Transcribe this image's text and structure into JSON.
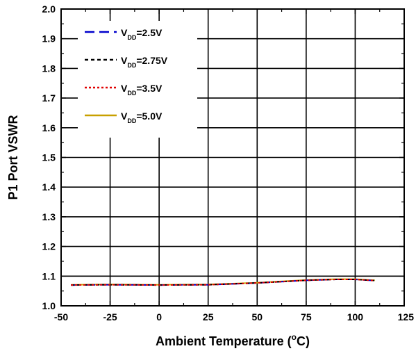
{
  "chart_data": {
    "type": "line",
    "title": "",
    "xlabel": "Ambient Temperature",
    "xlabel_unit_open": " (",
    "xlabel_unit_sup": "o",
    "xlabel_unit_close": "C)",
    "ylabel": "P1 Port VSWR",
    "xlim": [
      -50,
      125
    ],
    "ylim": [
      1.0,
      2.0
    ],
    "xticks": [
      -50,
      -25,
      0,
      25,
      50,
      75,
      100,
      125
    ],
    "xtick_labels": [
      "-50",
      "-25",
      "0",
      "25",
      "50",
      "75",
      "100",
      "125"
    ],
    "yticks": [
      1.0,
      1.1,
      1.2,
      1.3,
      1.4,
      1.5,
      1.6,
      1.7,
      1.8,
      1.9,
      2.0
    ],
    "ytick_labels": [
      "1.0",
      "1.1",
      "1.2",
      "1.3",
      "1.4",
      "1.5",
      "1.6",
      "1.7",
      "1.8",
      "1.9",
      "2.0"
    ],
    "grid": true,
    "legend_position": "top-left",
    "x": [
      -45,
      -25,
      0,
      25,
      50,
      75,
      90,
      100,
      110
    ],
    "series": [
      {
        "name_main": "V",
        "name_sub": "DD",
        "name_rest": "=2.5V",
        "color": "#0000cc",
        "dash": "long-dash",
        "values": [
          1.07,
          1.071,
          1.07,
          1.071,
          1.077,
          1.086,
          1.089,
          1.089,
          1.085
        ]
      },
      {
        "name_main": "V",
        "name_sub": "DD",
        "name_rest": "=2.75V",
        "color": "#000000",
        "dash": "short-dash",
        "values": [
          1.07,
          1.071,
          1.07,
          1.071,
          1.077,
          1.086,
          1.089,
          1.089,
          1.085
        ]
      },
      {
        "name_main": "V",
        "name_sub": "DD",
        "name_rest": "=3.5V",
        "color": "#e00000",
        "dash": "dot",
        "values": [
          1.07,
          1.071,
          1.07,
          1.071,
          1.077,
          1.086,
          1.089,
          1.089,
          1.085
        ]
      },
      {
        "name_main": "V",
        "name_sub": "DD",
        "name_rest": "=5.0V",
        "color": "#c8a000",
        "dash": "solid",
        "values": [
          1.071,
          1.072,
          1.071,
          1.072,
          1.078,
          1.087,
          1.09,
          1.09,
          1.086
        ]
      }
    ]
  }
}
